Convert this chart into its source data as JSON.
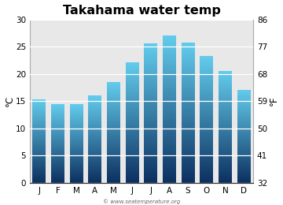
{
  "title": "Takahama water temp",
  "months": [
    "J",
    "F",
    "M",
    "A",
    "M",
    "J",
    "J",
    "A",
    "S",
    "O",
    "N",
    "D"
  ],
  "values_c": [
    15.3,
    14.4,
    14.4,
    16.0,
    18.5,
    22.1,
    25.6,
    27.0,
    25.7,
    23.2,
    20.5,
    17.1
  ],
  "ylim_c": [
    0,
    30
  ],
  "yticks_c": [
    0,
    5,
    10,
    15,
    20,
    25,
    30
  ],
  "ylim_f": [
    32,
    86
  ],
  "yticks_f": [
    32,
    41,
    50,
    59,
    68,
    77,
    86
  ],
  "ylabel_left": "°C",
  "ylabel_right": "°F",
  "bar_color_top": "#62cbec",
  "bar_color_bottom": "#0c3060",
  "plot_bg_color": "#e8e8e8",
  "fig_bg_color": "#ffffff",
  "watermark": "© www.seatemperature.org",
  "title_fontsize": 11.5,
  "tick_fontsize": 7.5,
  "bar_width": 0.72
}
